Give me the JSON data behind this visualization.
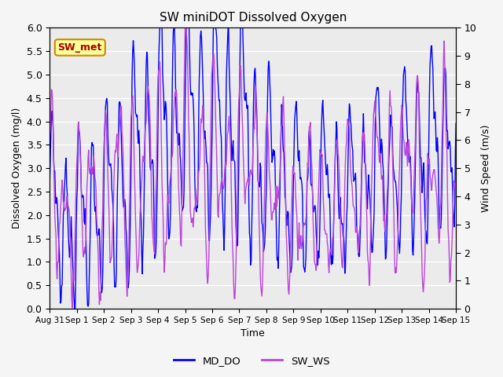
{
  "title": "SW miniDOT Dissolved Oxygen",
  "xlabel": "Time",
  "ylabel_left": "Dissolved Oxygen (mg/l)",
  "ylabel_right": "Wind Speed (m/s)",
  "ylim_left": [
    0.0,
    6.0
  ],
  "ylim_right": [
    0.0,
    10.0
  ],
  "yticks_left": [
    0.0,
    0.5,
    1.0,
    1.5,
    2.0,
    2.5,
    3.0,
    3.5,
    4.0,
    4.5,
    5.0,
    5.5,
    6.0
  ],
  "yticks_right": [
    0.0,
    1.0,
    2.0,
    3.0,
    4.0,
    5.0,
    6.0,
    7.0,
    8.0,
    9.0,
    10.0
  ],
  "xtick_labels": [
    "Aug 31",
    "Sep 1",
    "Sep 2",
    "Sep 3",
    "Sep 4",
    "Sep 5",
    "Sep 6",
    "Sep 7",
    "Sep 8",
    "Sep 9",
    "Sep 10",
    "Sep 11",
    "Sep 12",
    "Sep 13",
    "Sep 14",
    "Sep 15"
  ],
  "legend_labels": [
    "MD_DO",
    "SW_WS"
  ],
  "color_do": "#0000ff",
  "color_ws": "#bb44dd",
  "annotation_text": "SW_met",
  "annotation_color": "#aa0000",
  "annotation_box_color": "#ffff99",
  "annotation_box_edge": "#cc8800",
  "plot_bg_color": "#ebebeb",
  "fig_bg_color": "#f5f5f5",
  "grid_color": "#ffffff",
  "line_width": 1.0,
  "seed": 7
}
